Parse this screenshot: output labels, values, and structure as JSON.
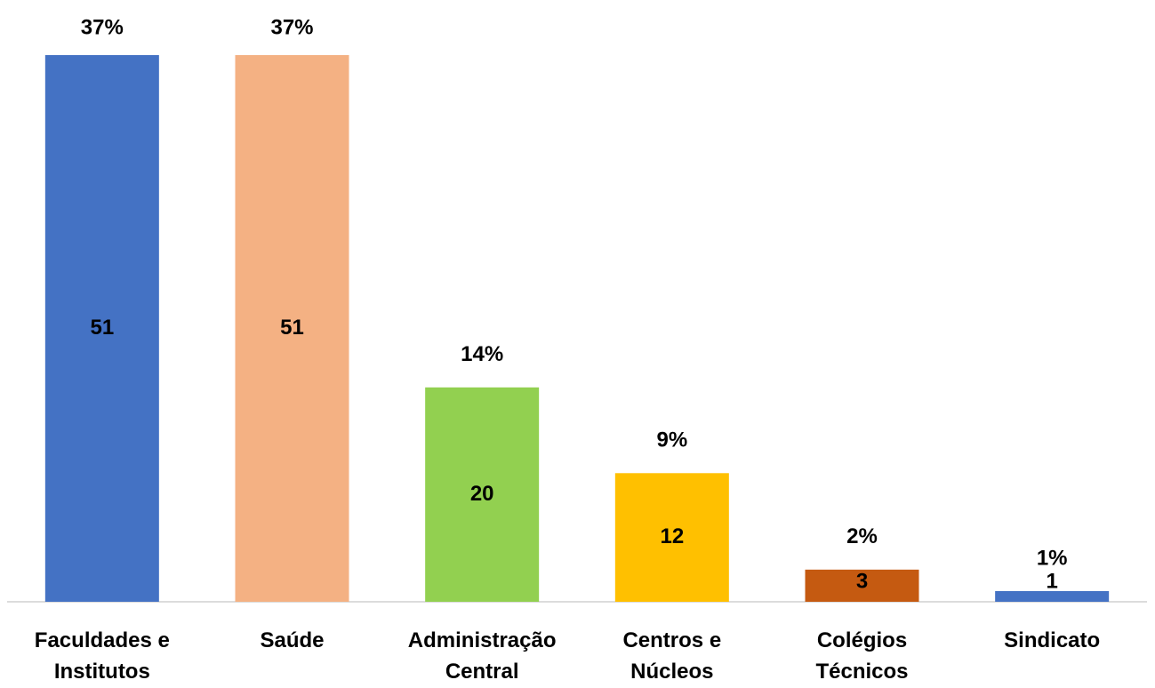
{
  "chart_data": {
    "type": "bar",
    "categories": [
      [
        "Faculdades e",
        "Institutos"
      ],
      [
        "Saúde"
      ],
      [
        "Administração",
        "Central"
      ],
      [
        "Centros e",
        "Núcleos"
      ],
      [
        "Colégios",
        "Técnicos"
      ],
      [
        "Sindicato"
      ]
    ],
    "values": [
      51,
      51,
      20,
      12,
      3,
      1
    ],
    "percent_labels": [
      "37%",
      "37%",
      "14%",
      "9%",
      "2%",
      "1%"
    ],
    "colors": [
      "#4472c4",
      "#f4b183",
      "#92d050",
      "#ffc000",
      "#c55a11",
      "#4472c4"
    ]
  }
}
